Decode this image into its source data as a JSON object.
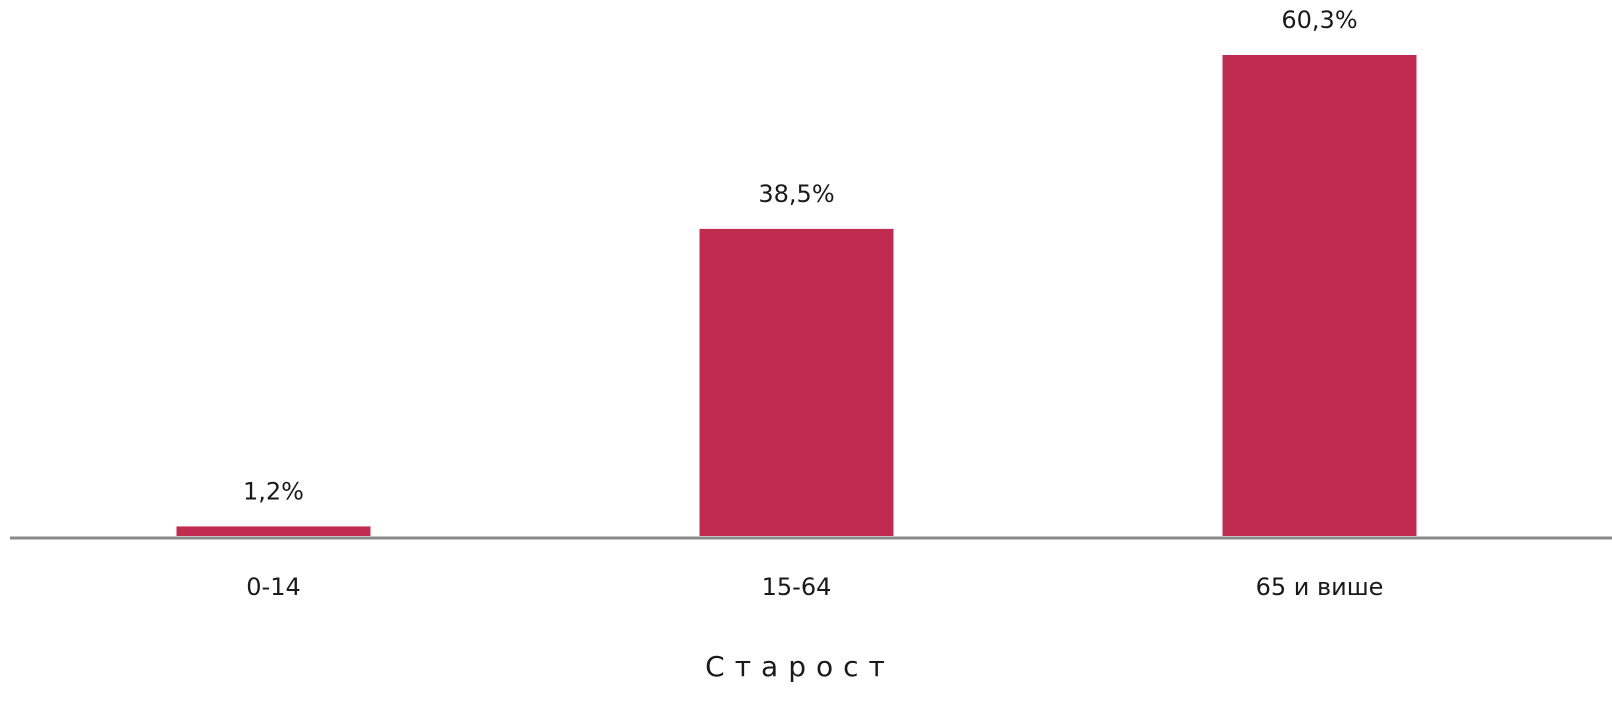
{
  "chart_data": {
    "type": "bar",
    "x_label": "Старост",
    "categories": [
      "0-14",
      "15-64",
      "65 и више"
    ],
    "values": [
      1.2,
      38.5,
      60.3
    ],
    "value_labels": [
      "1,2%",
      "38,5%",
      "60,3%"
    ],
    "color": "#c02c50"
  }
}
